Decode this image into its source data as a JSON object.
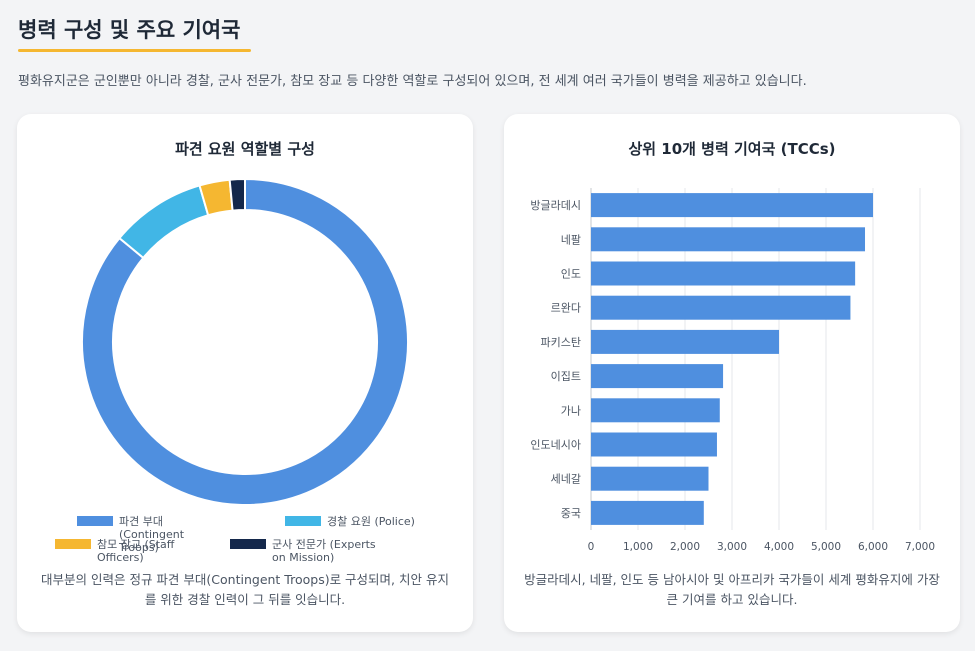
{
  "section": {
    "title": "병력 구성 및 주요 기여국",
    "intro": "평화유지군은 군인뿐만 아니라 경찰, 군사 전문가, 참모 장교 등 다양한 역할로 구성되어 있으며, 전 세계 여러 국가들이 병력을 제공하고 있습니다."
  },
  "colors": {
    "accent": "#f5b731",
    "troops": "#4f8fdf",
    "police": "#41b6e6",
    "staff": "#f5b731",
    "experts": "#14284b",
    "bar": "#4f8fdf"
  },
  "donut_card": {
    "title": "파견 요원 역할별 구성",
    "caption": "대부분의 인력은 정규 파견 부대(Contingent Troops)로 구성되며, 치안 유지를 위한 경찰 인력이 그 뒤를 잇습니다."
  },
  "bar_card": {
    "title": "상위 10개 병력 기여국 (TCCs)",
    "caption": "방글라데시, 네팔, 인도 등 남아시아 및 아프리카 국가들이 세계 평화유지에 가장 큰 기여를 하고 있습니다."
  },
  "chart_data": [
    {
      "type": "pie",
      "title": "파견 요원 역할별 구성",
      "donut": true,
      "categories": [
        "파견 부대 (Contingent Troops)",
        "경찰 요원 (Police)",
        "참모 장교 (Staff Officers)",
        "군사 전문가 (Experts on Mission)"
      ],
      "legend_lines": [
        [
          "파견 부대",
          "(Contingent",
          "Troops)"
        ],
        [
          "경찰 요원 (Police)"
        ],
        [
          "참모 장교 (Staff",
          "Officers)"
        ],
        [
          "군사 전문가 (Experts",
          "on Mission)"
        ]
      ],
      "values": [
        86,
        9.5,
        3,
        1.5
      ],
      "colors": [
        "#4f8fdf",
        "#41b6e6",
        "#f5b731",
        "#14284b"
      ],
      "legend_position": "bottom"
    },
    {
      "type": "bar",
      "orientation": "horizontal",
      "title": "상위 10개 병력 기여국 (TCCs)",
      "categories": [
        "방글라데시",
        "네팔",
        "인도",
        "르완다",
        "파키스탄",
        "이집트",
        "가나",
        "인도네시아",
        "세네갈",
        "중국"
      ],
      "values": [
        6000,
        5830,
        5620,
        5520,
        4000,
        2810,
        2740,
        2680,
        2500,
        2400
      ],
      "xlim": [
        0,
        7000
      ],
      "xticks": [
        0,
        1000,
        2000,
        3000,
        4000,
        5000,
        6000,
        7000
      ],
      "xtick_labels": [
        "0",
        "1,000",
        "2,000",
        "3,000",
        "4,000",
        "5,000",
        "6,000",
        "7,000"
      ],
      "grid": true
    }
  ]
}
